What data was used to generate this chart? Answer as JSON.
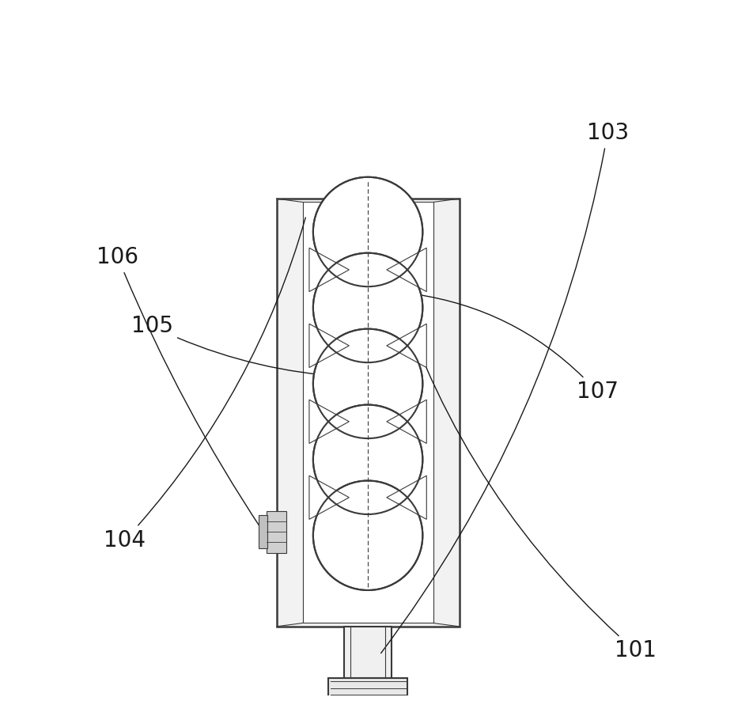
{
  "bg_color": "#ffffff",
  "line_color": "#3a3a3a",
  "label_color": "#1a1a1a",
  "figsize": [
    9.52,
    8.86
  ],
  "dpi": 100,
  "label_fontsize": 20
}
